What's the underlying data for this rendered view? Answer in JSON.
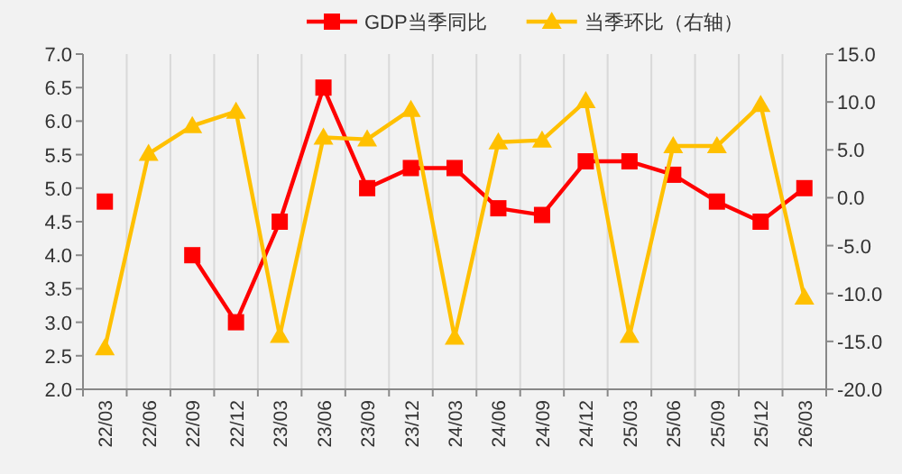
{
  "chart_data": {
    "type": "line",
    "categories": [
      "22/03",
      "22/06",
      "22/09",
      "22/12",
      "23/03",
      "23/06",
      "23/09",
      "23/12",
      "24/03",
      "24/06",
      "24/09",
      "24/12",
      "25/03",
      "25/06",
      "25/09",
      "25/12",
      "26/03"
    ],
    "series": [
      {
        "name": "GDP当季同比",
        "color": "#ff0000",
        "marker": "square",
        "values": [
          4.8,
          null,
          4.0,
          3.0,
          4.5,
          6.5,
          5.0,
          5.3,
          5.3,
          4.7,
          4.6,
          5.4,
          5.4,
          5.2,
          4.8,
          4.5,
          5.0
        ]
      },
      {
        "name": "当季环比（右轴）",
        "color": "#ffc000",
        "marker": "triangle",
        "axis": "y2",
        "values": [
          -15.7,
          4.6,
          7.5,
          9.0,
          -14.4,
          6.3,
          6.1,
          9.2,
          -14.6,
          5.8,
          6.0,
          10.1,
          -14.4,
          5.4,
          5.4,
          9.7,
          -10.4
        ]
      }
    ],
    "ylim": [
      2.0,
      7.0
    ],
    "yticks": [
      {
        "value": 2,
        "label": "2.0"
      },
      {
        "value": 2.5,
        "label": "2.5"
      },
      {
        "value": 3,
        "label": "3.0"
      },
      {
        "value": 3.5,
        "label": "3.5"
      },
      {
        "value": 4,
        "label": "4.0"
      },
      {
        "value": 4.5,
        "label": "4.5"
      },
      {
        "value": 5,
        "label": "5.0"
      },
      {
        "value": 5.5,
        "label": "5.5"
      },
      {
        "value": 6,
        "label": "6.0"
      },
      {
        "value": 6.5,
        "label": "6.5"
      },
      {
        "value": 7,
        "label": "7.0"
      }
    ],
    "y2lim": [
      -20.0,
      15.0
    ],
    "y2ticks": [
      {
        "value": -20,
        "label": "-20.0"
      },
      {
        "value": -15,
        "label": "-15.0"
      },
      {
        "value": -10,
        "label": "-10.0"
      },
      {
        "value": -5,
        "label": "-5.0"
      },
      {
        "value": 0,
        "label": "0.0"
      },
      {
        "value": 5,
        "label": "5.0"
      },
      {
        "value": 10,
        "label": "10.0"
      },
      {
        "value": 15,
        "label": "15.0"
      }
    ],
    "grid": "x",
    "legend": "top"
  }
}
